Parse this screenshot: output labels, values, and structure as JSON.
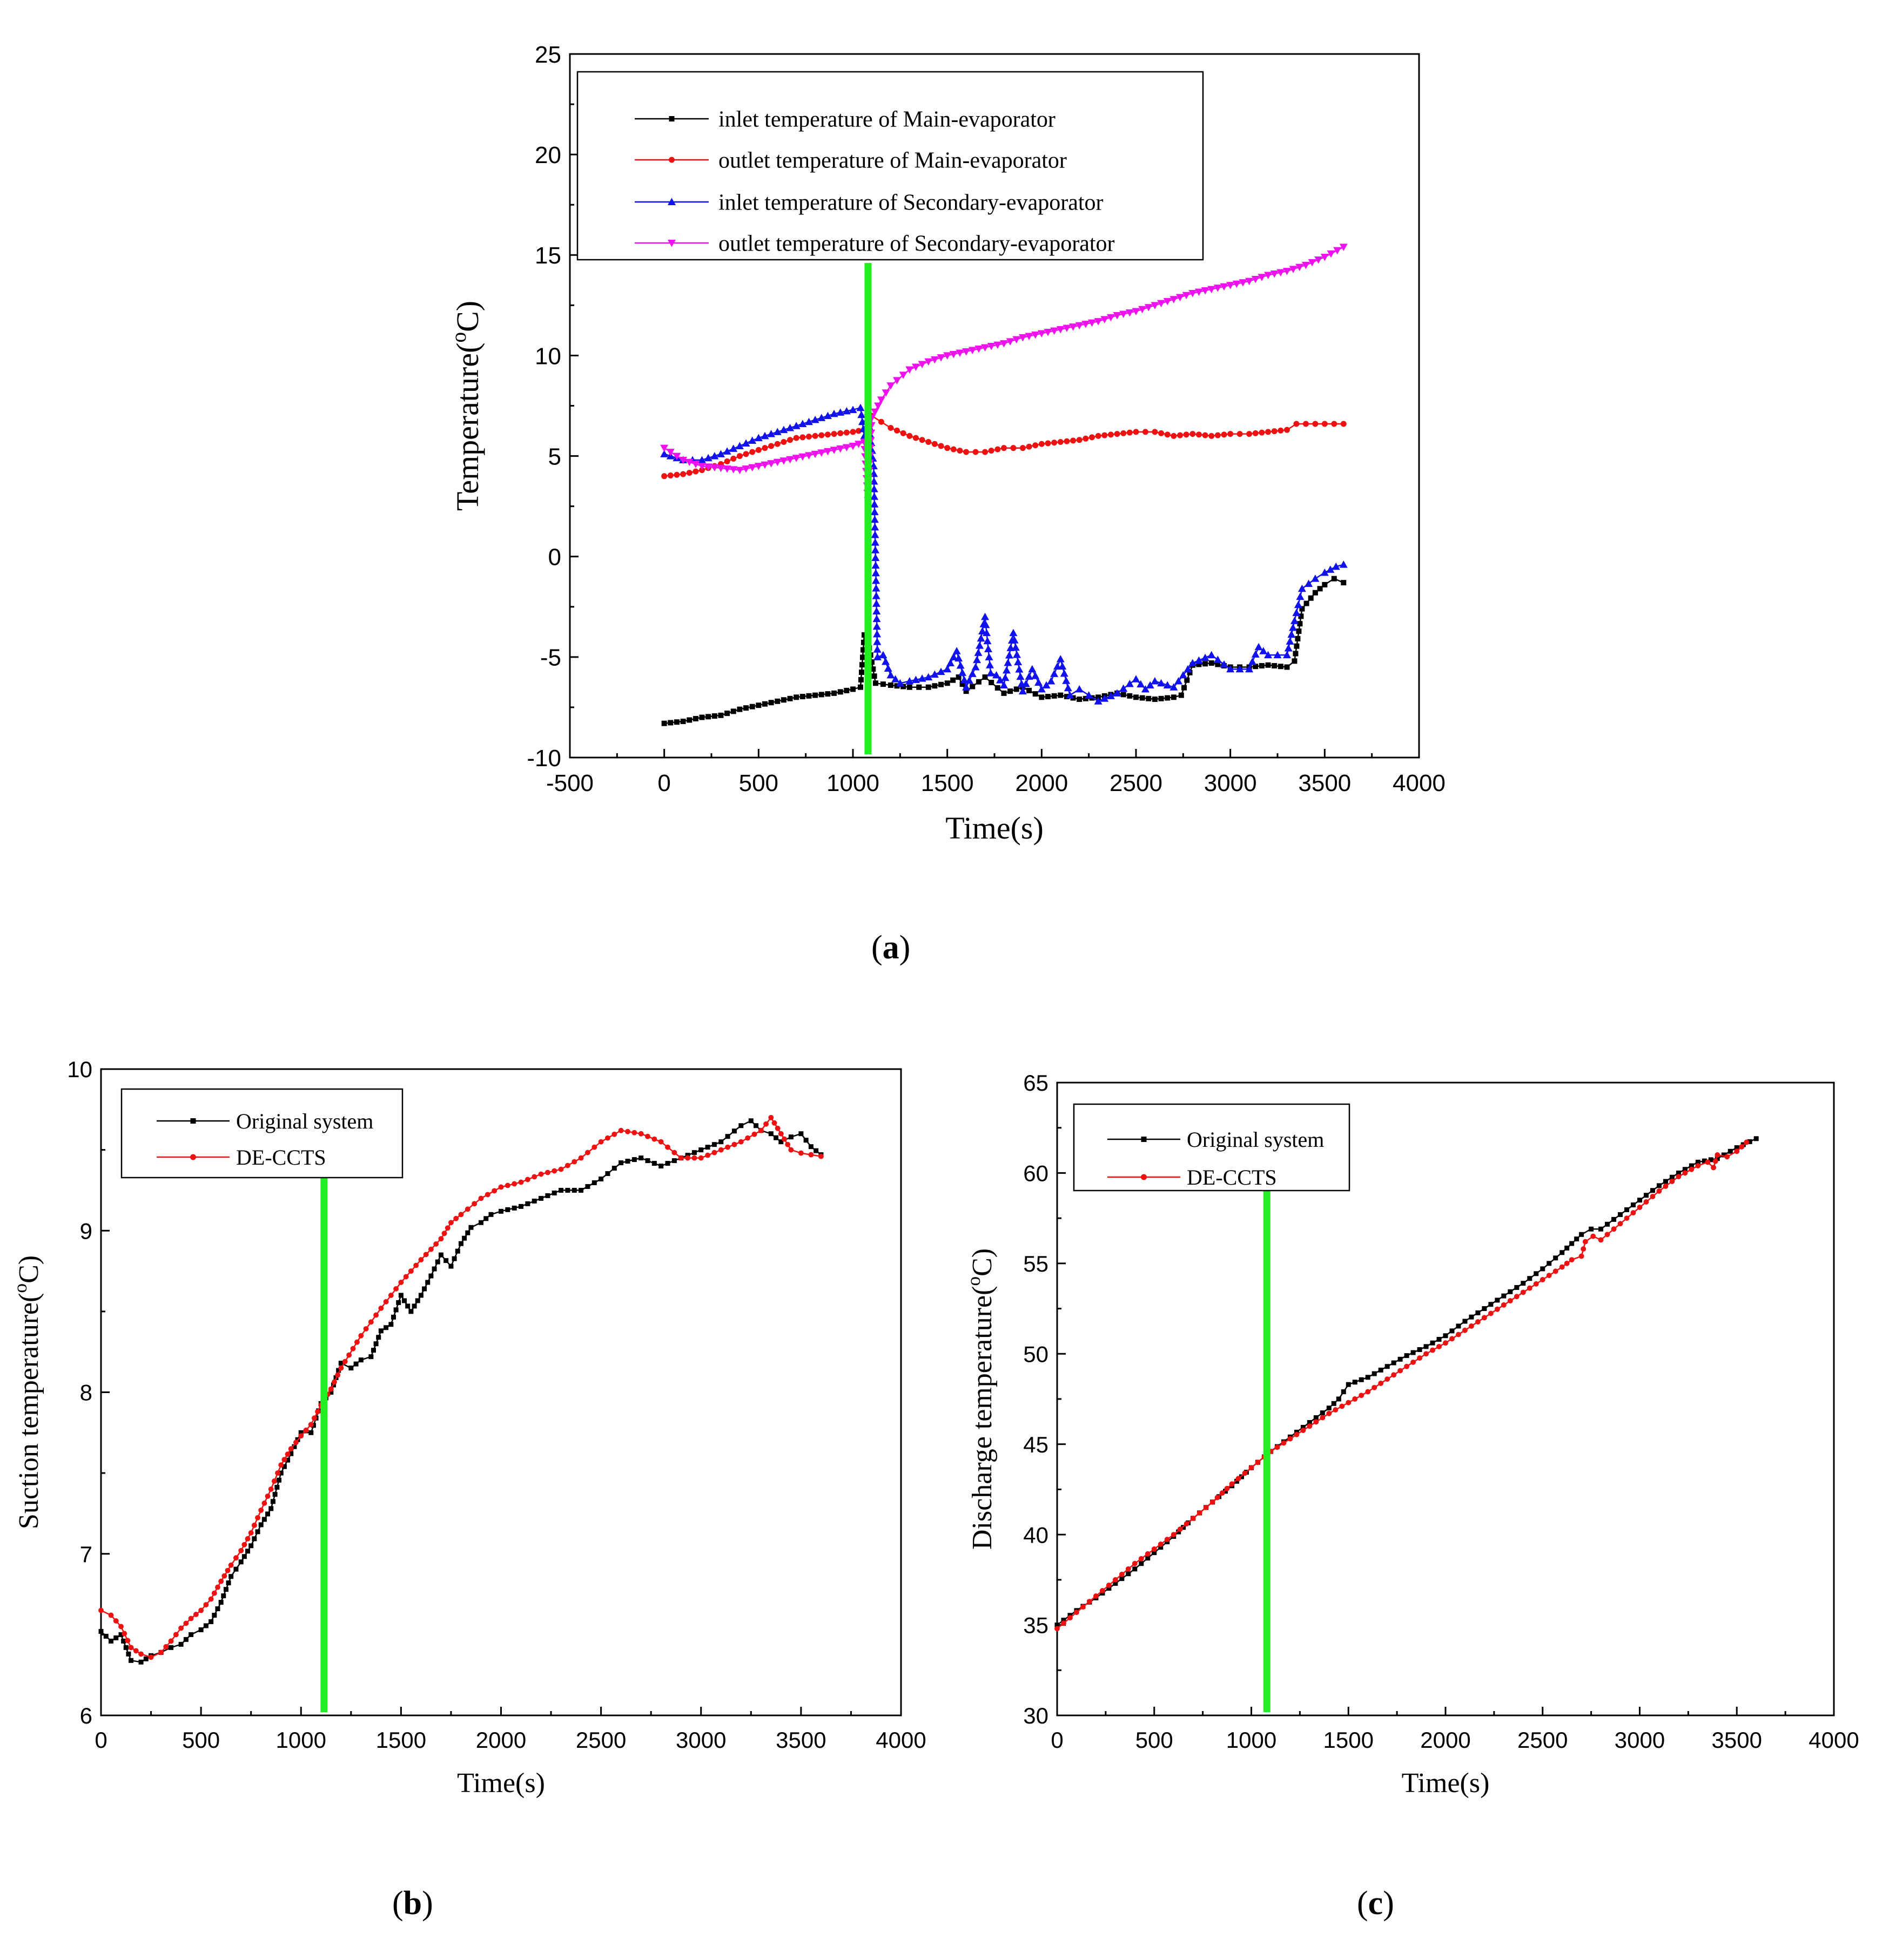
{
  "chart_data": [
    {
      "id": "a",
      "type": "line",
      "caption": "a",
      "xlabel": "Time(s)",
      "ylabel_base": "Temperature(",
      "ylabel_sup": "o",
      "ylabel_end": "C)",
      "xlim": [
        -500,
        4000
      ],
      "ylim": [
        -10,
        25
      ],
      "xticks": [
        "-500",
        "0",
        "500",
        "1000",
        "1500",
        "2000",
        "2500",
        "3000",
        "3500",
        "4000"
      ],
      "yticks": [
        "-10",
        "-5",
        "0",
        "5",
        "10",
        "15",
        "20",
        "25"
      ],
      "marker_x": 1080,
      "marker_color": "#22ee22",
      "series": [
        {
          "name": "inlet temperature of Main-evaporator",
          "color": "#000000",
          "marker": "square",
          "x": [
            0,
            100,
            200,
            300,
            400,
            500,
            600,
            700,
            800,
            900,
            1000,
            1040,
            1060,
            1080,
            1120,
            1200,
            1300,
            1400,
            1500,
            1560,
            1600,
            1700,
            1800,
            1900,
            2000,
            2100,
            2200,
            2300,
            2400,
            2500,
            2600,
            2700,
            2740,
            2800,
            2900,
            3000,
            3100,
            3200,
            3300,
            3340,
            3380,
            3450,
            3500,
            3550,
            3600
          ],
          "y": [
            -8.3,
            -8.2,
            -8.0,
            -7.9,
            -7.6,
            -7.4,
            -7.2,
            -7.0,
            -6.9,
            -6.8,
            -6.6,
            -6.5,
            -3.9,
            -4.2,
            -6.3,
            -6.4,
            -6.5,
            -6.5,
            -6.3,
            -6.0,
            -6.7,
            -6.0,
            -6.8,
            -6.5,
            -7.0,
            -6.9,
            -7.1,
            -7.0,
            -6.8,
            -7.0,
            -7.1,
            -7.0,
            -6.9,
            -5.4,
            -5.3,
            -5.5,
            -5.5,
            -5.4,
            -5.5,
            -5.2,
            -2.6,
            -1.8,
            -1.4,
            -1.1,
            -1.3
          ]
        },
        {
          "name": "outlet temperature of Main-evaporator",
          "color": "#ee1111",
          "marker": "circle",
          "x": [
            0,
            100,
            200,
            300,
            400,
            500,
            600,
            700,
            800,
            900,
            1000,
            1060,
            1100,
            1150,
            1200,
            1300,
            1400,
            1500,
            1600,
            1700,
            1800,
            1900,
            2000,
            2100,
            2200,
            2300,
            2400,
            2500,
            2600,
            2700,
            2800,
            2900,
            3000,
            3100,
            3200,
            3300,
            3350,
            3400,
            3500,
            3600
          ],
          "y": [
            4.0,
            4.1,
            4.3,
            4.6,
            5.0,
            5.3,
            5.6,
            5.9,
            6.0,
            6.1,
            6.2,
            6.3,
            7.0,
            6.7,
            6.4,
            6.0,
            5.7,
            5.4,
            5.2,
            5.2,
            5.4,
            5.4,
            5.6,
            5.7,
            5.8,
            6.0,
            6.1,
            6.2,
            6.2,
            6.0,
            6.1,
            6.0,
            6.1,
            6.1,
            6.2,
            6.3,
            6.6,
            6.6,
            6.6,
            6.6
          ]
        },
        {
          "name": "inlet temperature of Secondary-evaporator",
          "color": "#1111ee",
          "marker": "triangle-up",
          "x": [
            0,
            100,
            200,
            300,
            400,
            500,
            600,
            700,
            800,
            900,
            1000,
            1040,
            1060,
            1080,
            1110,
            1130,
            1160,
            1200,
            1250,
            1300,
            1400,
            1500,
            1550,
            1600,
            1650,
            1700,
            1730,
            1760,
            1800,
            1850,
            1900,
            1950,
            2000,
            2050,
            2100,
            2150,
            2200,
            2250,
            2300,
            2400,
            2500,
            2550,
            2600,
            2700,
            2800,
            2900,
            3000,
            3100,
            3150,
            3200,
            3300,
            3340,
            3380,
            3450,
            3500,
            3560,
            3600
          ],
          "y": [
            5.1,
            4.8,
            4.8,
            5.1,
            5.5,
            5.9,
            6.2,
            6.5,
            6.8,
            7.1,
            7.3,
            7.4,
            6.0,
            7.2,
            4.5,
            -5.0,
            -4.9,
            -5.9,
            -6.3,
            -6.2,
            -6.0,
            -5.6,
            -4.7,
            -6.5,
            -5.5,
            -3.0,
            -5.8,
            -5.9,
            -6.4,
            -3.8,
            -6.7,
            -5.6,
            -6.6,
            -6.2,
            -5.1,
            -6.9,
            -6.6,
            -6.9,
            -7.2,
            -6.8,
            -6.1,
            -6.6,
            -6.2,
            -6.5,
            -5.3,
            -4.9,
            -5.6,
            -5.6,
            -4.5,
            -4.9,
            -4.9,
            -3.2,
            -1.6,
            -1.1,
            -0.8,
            -0.5,
            -0.4
          ]
        },
        {
          "name": "outlet temperature of Secondary-evaporator",
          "color": "#ee11ee",
          "marker": "triangle-down",
          "x": [
            0,
            100,
            200,
            300,
            400,
            500,
            600,
            700,
            800,
            900,
            1000,
            1060,
            1080,
            1100,
            1150,
            1200,
            1300,
            1400,
            1500,
            1600,
            1700,
            1800,
            1900,
            2000,
            2100,
            2200,
            2300,
            2400,
            2500,
            2600,
            2700,
            2800,
            2900,
            3000,
            3100,
            3200,
            3300,
            3400,
            3500,
            3600
          ],
          "y": [
            5.4,
            4.8,
            4.5,
            4.4,
            4.3,
            4.5,
            4.7,
            4.9,
            5.1,
            5.3,
            5.5,
            5.7,
            2.8,
            6.9,
            7.8,
            8.5,
            9.3,
            9.7,
            10.0,
            10.2,
            10.4,
            10.6,
            10.9,
            11.1,
            11.3,
            11.5,
            11.7,
            12.0,
            12.2,
            12.5,
            12.8,
            13.1,
            13.3,
            13.5,
            13.7,
            14.0,
            14.2,
            14.5,
            14.9,
            15.4
          ]
        }
      ]
    },
    {
      "id": "b",
      "type": "line",
      "caption": "b",
      "xlabel": "Time(s)",
      "ylabel_base": "Suction temperature(",
      "ylabel_sup": "o",
      "ylabel_end": "C)",
      "xlim": [
        0,
        4000
      ],
      "ylim": [
        6,
        10
      ],
      "xticks": [
        "0",
        "500",
        "1000",
        "1500",
        "2000",
        "2500",
        "3000",
        "3500",
        "4000"
      ],
      "yticks": [
        "6",
        "7",
        "8",
        "9",
        "10"
      ],
      "marker_x": 1115,
      "marker_color": "#22ee22",
      "series": [
        {
          "name": "Original system",
          "color": "#000000",
          "marker": "square",
          "x": [
            0,
            50,
            100,
            150,
            200,
            250,
            300,
            350,
            400,
            450,
            500,
            550,
            600,
            650,
            700,
            750,
            800,
            850,
            900,
            950,
            1000,
            1050,
            1100,
            1150,
            1200,
            1250,
            1300,
            1350,
            1400,
            1450,
            1500,
            1550,
            1600,
            1650,
            1700,
            1750,
            1800,
            1850,
            1900,
            1950,
            2000,
            2100,
            2200,
            2300,
            2400,
            2500,
            2600,
            2700,
            2800,
            2900,
            3000,
            3100,
            3200,
            3250,
            3300,
            3350,
            3400,
            3450,
            3500,
            3550,
            3600
          ],
          "y": [
            6.52,
            6.46,
            6.5,
            6.34,
            6.33,
            6.37,
            6.39,
            6.42,
            6.44,
            6.5,
            6.53,
            6.58,
            6.7,
            6.86,
            6.95,
            7.05,
            7.18,
            7.28,
            7.5,
            7.62,
            7.75,
            7.75,
            7.93,
            8.0,
            8.18,
            8.15,
            8.2,
            8.22,
            8.38,
            8.42,
            8.6,
            8.5,
            8.6,
            8.72,
            8.85,
            8.78,
            8.92,
            9.02,
            9.05,
            9.1,
            9.12,
            9.15,
            9.2,
            9.25,
            9.25,
            9.32,
            9.42,
            9.45,
            9.4,
            9.45,
            9.5,
            9.55,
            9.65,
            9.68,
            9.62,
            9.6,
            9.55,
            9.58,
            9.6,
            9.52,
            9.47
          ]
        },
        {
          "name": "DE-CCTS",
          "color": "#ee1111",
          "marker": "circle",
          "x": [
            0,
            50,
            100,
            150,
            200,
            250,
            300,
            350,
            400,
            450,
            500,
            550,
            600,
            650,
            700,
            750,
            800,
            850,
            900,
            950,
            1000,
            1050,
            1100,
            1150,
            1200,
            1300,
            1400,
            1500,
            1600,
            1700,
            1750,
            1800,
            1900,
            2000,
            2100,
            2200,
            2300,
            2400,
            2500,
            2600,
            2700,
            2800,
            2900,
            3000,
            3100,
            3200,
            3300,
            3350,
            3400,
            3450,
            3500,
            3550,
            3600
          ],
          "y": [
            6.65,
            6.62,
            6.55,
            6.42,
            6.38,
            6.36,
            6.39,
            6.46,
            6.54,
            6.6,
            6.65,
            6.72,
            6.83,
            6.93,
            7.02,
            7.13,
            7.27,
            7.4,
            7.55,
            7.65,
            7.73,
            7.8,
            7.92,
            8.02,
            8.15,
            8.35,
            8.52,
            8.68,
            8.82,
            8.95,
            9.05,
            9.1,
            9.2,
            9.27,
            9.3,
            9.35,
            9.38,
            9.45,
            9.55,
            9.62,
            9.6,
            9.55,
            9.45,
            9.45,
            9.5,
            9.55,
            9.62,
            9.7,
            9.6,
            9.5,
            9.48,
            9.47,
            9.46
          ]
        }
      ]
    },
    {
      "id": "c",
      "type": "line",
      "caption": "c",
      "xlabel": "Time(s)",
      "ylabel_base": "Discharge temperature(",
      "ylabel_sup": "o",
      "ylabel_end": "C)",
      "xlim": [
        0,
        4000
      ],
      "ylim": [
        30,
        65
      ],
      "xticks": [
        "0",
        "500",
        "1000",
        "1500",
        "2000",
        "2500",
        "3000",
        "3500",
        "4000"
      ],
      "yticks": [
        "30",
        "35",
        "40",
        "45",
        "50",
        "55",
        "60",
        "65"
      ],
      "marker_x": 1080,
      "marker_color": "#22ee22",
      "series": [
        {
          "name": "Original system",
          "color": "#000000",
          "marker": "square",
          "x": [
            0,
            100,
            200,
            300,
            400,
            500,
            600,
            700,
            800,
            900,
            1000,
            1100,
            1200,
            1300,
            1400,
            1450,
            1500,
            1600,
            1700,
            1800,
            1900,
            2000,
            2100,
            2200,
            2300,
            2400,
            2500,
            2600,
            2700,
            2750,
            2800,
            2900,
            3000,
            3100,
            3200,
            3300,
            3400,
            3500,
            3600
          ],
          "y": [
            35.0,
            35.8,
            36.5,
            37.3,
            38.1,
            39.0,
            39.9,
            40.9,
            41.8,
            42.7,
            43.7,
            44.6,
            45.4,
            46.2,
            47.0,
            47.5,
            48.3,
            48.7,
            49.3,
            49.9,
            50.4,
            51.0,
            51.8,
            52.5,
            53.2,
            53.9,
            54.7,
            55.6,
            56.6,
            56.9,
            56.9,
            57.7,
            58.5,
            59.3,
            60.0,
            60.6,
            60.8,
            61.4,
            61.9
          ]
        },
        {
          "name": "DE-CCTS",
          "color": "#ee1111",
          "marker": "circle",
          "x": [
            0,
            100,
            200,
            300,
            400,
            500,
            600,
            700,
            800,
            900,
            1000,
            1100,
            1200,
            1300,
            1400,
            1500,
            1600,
            1700,
            1800,
            1900,
            2000,
            2100,
            2200,
            2300,
            2400,
            2500,
            2600,
            2650,
            2700,
            2720,
            2760,
            2800,
            2900,
            3000,
            3100,
            3200,
            3300,
            3350,
            3380,
            3400,
            3450,
            3500,
            3550
          ],
          "y": [
            34.8,
            35.7,
            36.6,
            37.5,
            38.4,
            39.2,
            40.0,
            40.9,
            41.8,
            42.8,
            43.7,
            44.6,
            45.3,
            46.0,
            46.7,
            47.3,
            47.9,
            48.6,
            49.3,
            50.0,
            50.6,
            51.3,
            52.0,
            52.7,
            53.4,
            54.1,
            54.8,
            55.2,
            55.4,
            56.2,
            56.5,
            56.3,
            57.2,
            58.1,
            59.0,
            59.8,
            60.4,
            60.6,
            60.3,
            61.0,
            60.9,
            61.2,
            61.7
          ]
        }
      ]
    }
  ]
}
